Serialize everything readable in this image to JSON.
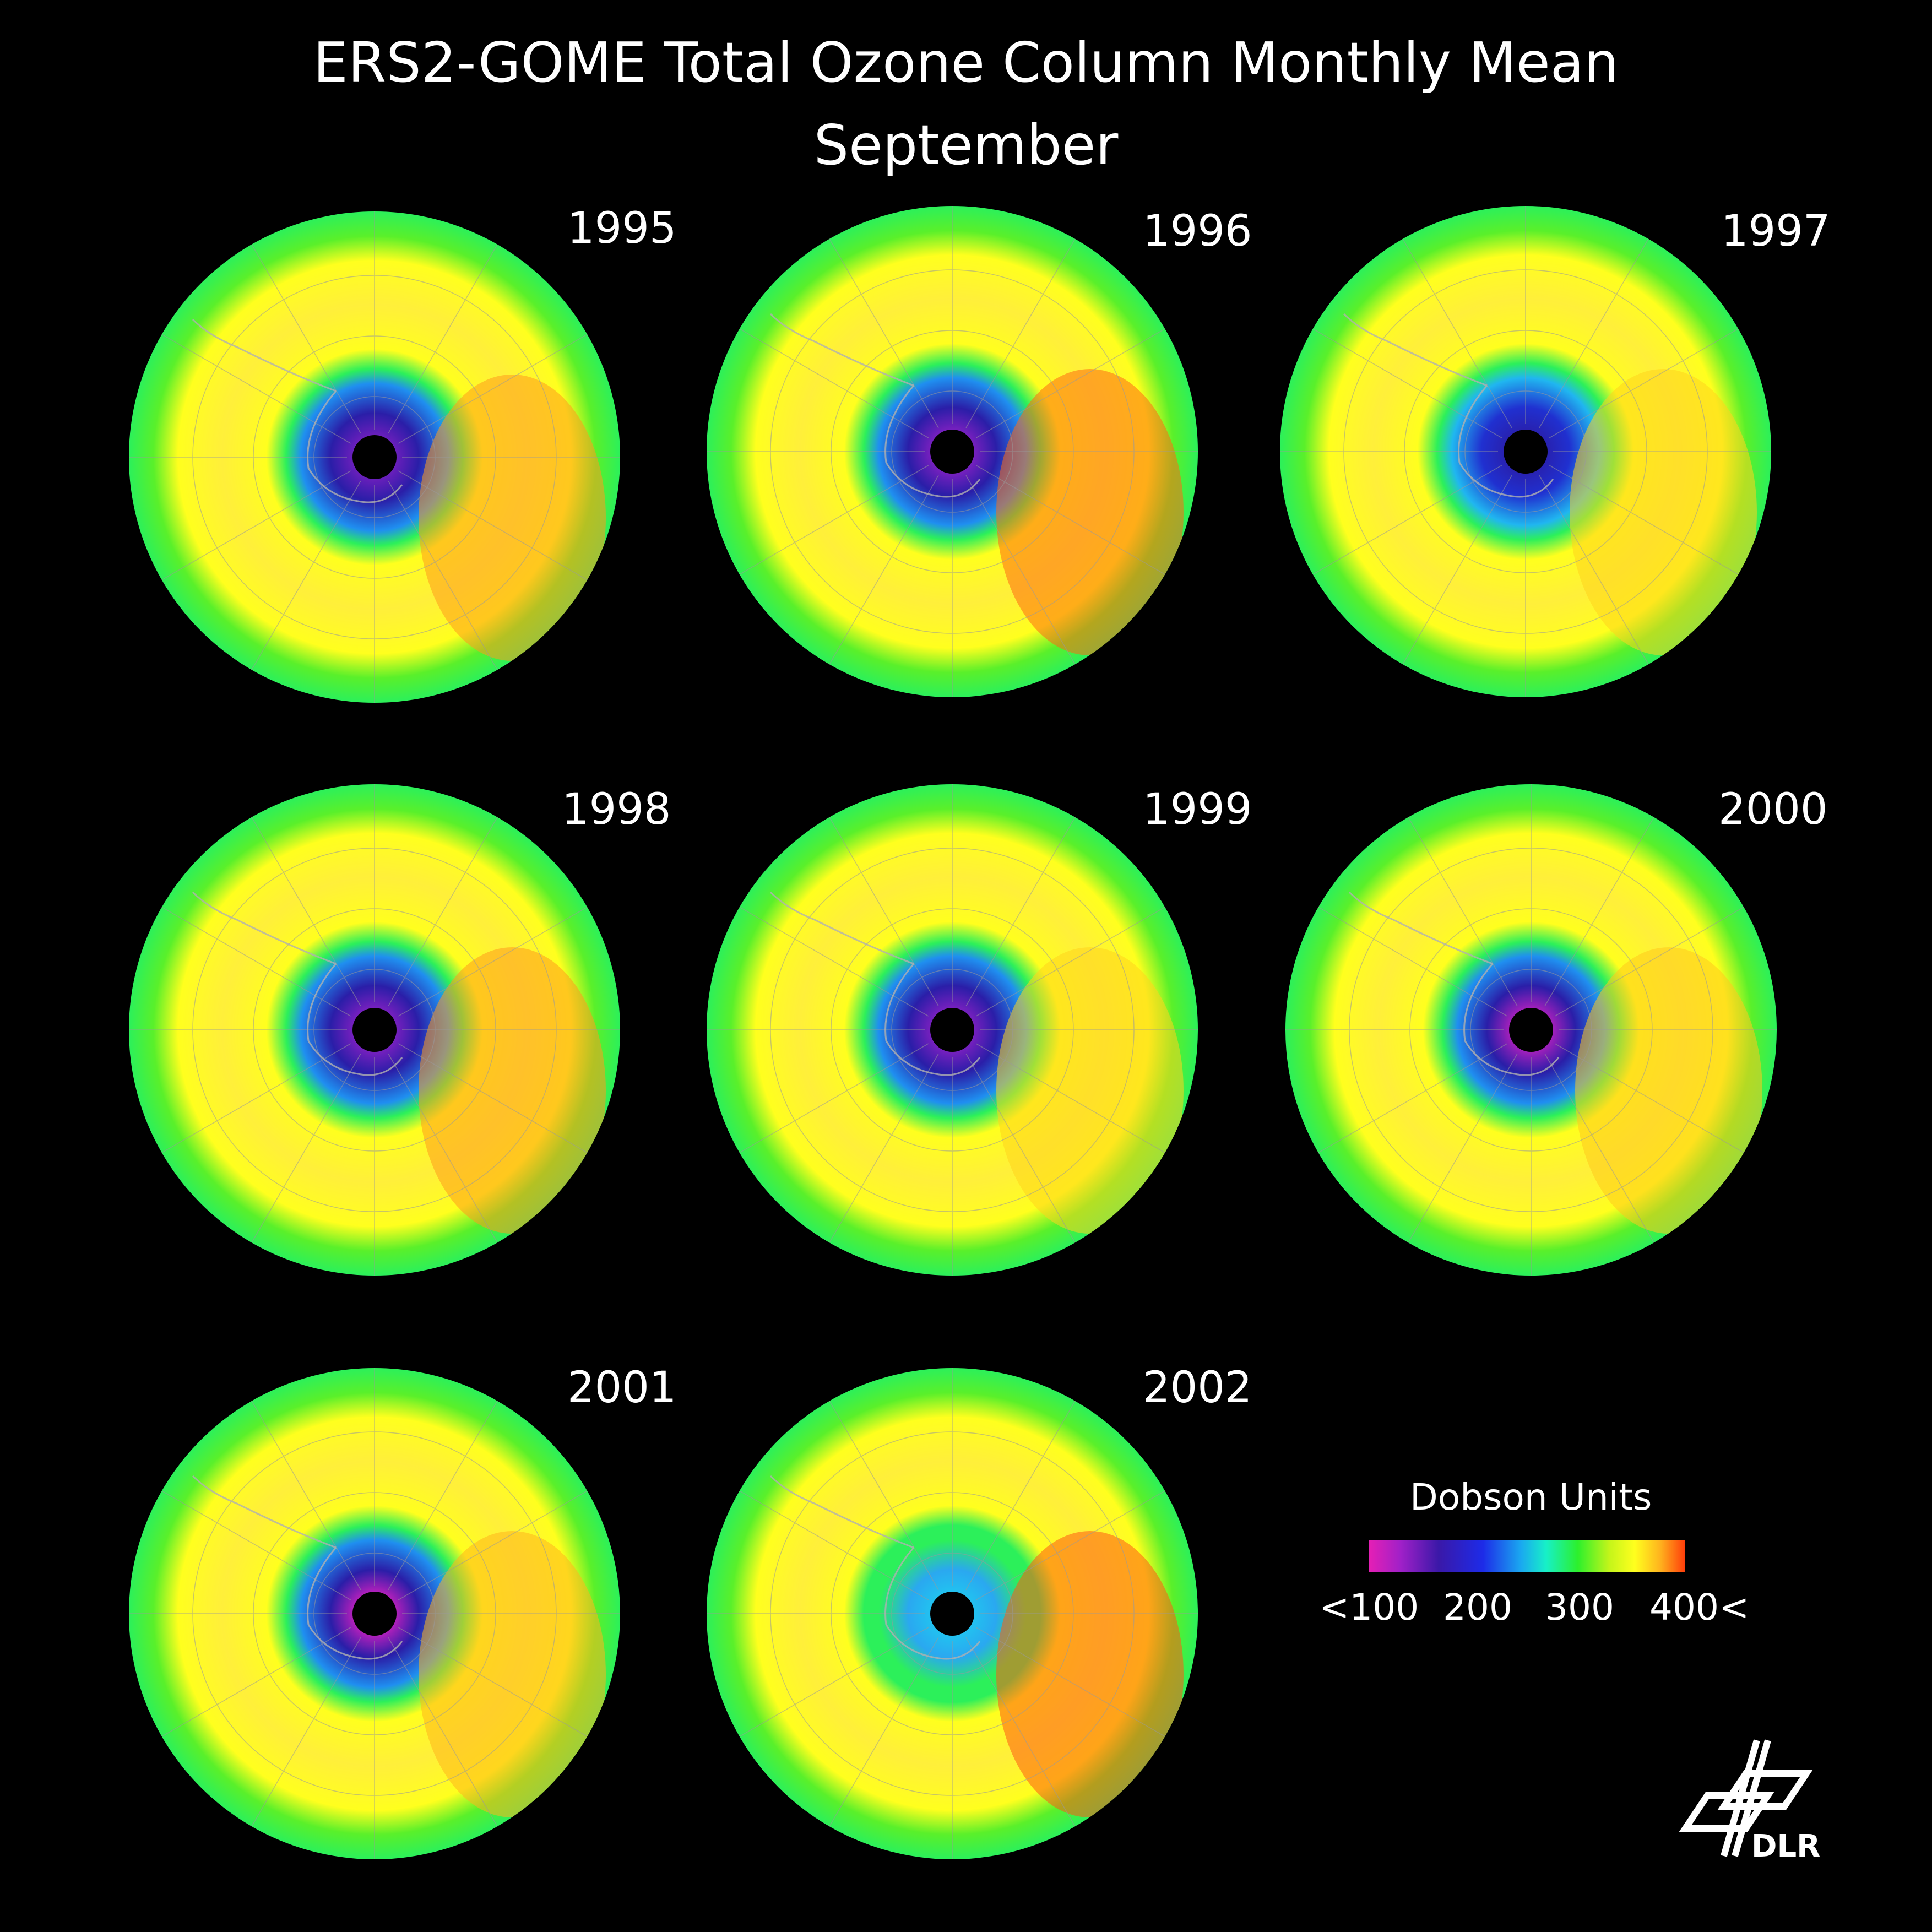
{
  "header": {
    "title": "ERS2-GOME Total Ozone Column Monthly Mean",
    "subtitle": "September"
  },
  "maps": [
    {
      "year": "1995",
      "hole": "#2a1ea8",
      "inner": "#7a1fc0",
      "ring": "#1f8ff0",
      "east": "#ff9a1e"
    },
    {
      "year": "1996",
      "hole": "#2a1ea8",
      "inner": "#8a20c4",
      "ring": "#1f8ff0",
      "east": "#ff6a14"
    },
    {
      "year": "1997",
      "hole": "#2030d0",
      "inner": "#2a1ea8",
      "ring": "#20b6f0",
      "east": "#ffd41e"
    },
    {
      "year": "1998",
      "hole": "#2a1ea8",
      "inner": "#8a20c4",
      "ring": "#1f8ff0",
      "east": "#ff9a1e"
    },
    {
      "year": "1999",
      "hole": "#2a1ea8",
      "inner": "#8a20c4",
      "ring": "#1f8ff0",
      "east": "#ffd41e"
    },
    {
      "year": "2000",
      "hole": "#2a1ea8",
      "inner": "#c020c0",
      "ring": "#1f8ff0",
      "east": "#ffc81e"
    },
    {
      "year": "2001",
      "hole": "#2a1ea8",
      "inner": "#d420c0",
      "ring": "#1f8ff0",
      "east": "#ffb41e"
    },
    {
      "year": "2002",
      "hole": "#2aa8f0",
      "inner": "#20c8f0",
      "ring": "#2cf05a",
      "east": "#ff5a14"
    }
  ],
  "legend": {
    "title": "Dobson Units",
    "ticks": [
      "<100",
      "200",
      "300",
      "400<"
    ]
  },
  "logo": {
    "text": "DLR"
  }
}
